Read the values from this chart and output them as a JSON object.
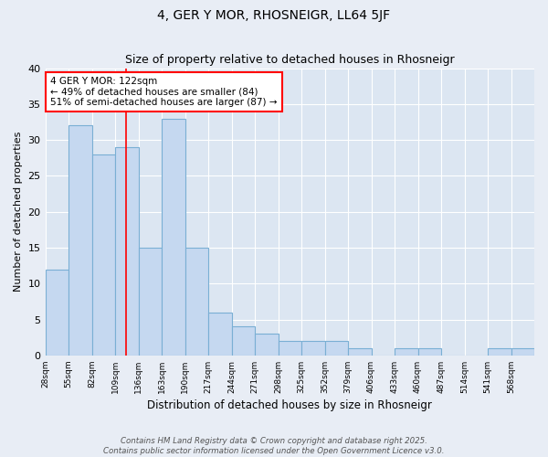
{
  "title": "4, GER Y MOR, RHOSNEIGR, LL64 5JF",
  "subtitle": "Size of property relative to detached houses in Rhosneigr",
  "xlabel": "Distribution of detached houses by size in Rhosneigr",
  "ylabel": "Number of detached properties",
  "bin_edges": [
    28,
    55,
    82,
    109,
    136,
    163,
    190,
    217,
    244,
    271,
    298,
    325,
    352,
    379,
    406,
    433,
    460,
    487,
    514,
    541,
    568,
    595
  ],
  "counts": [
    12,
    32,
    28,
    29,
    15,
    33,
    15,
    6,
    4,
    3,
    2,
    2,
    2,
    1,
    0,
    1,
    1,
    0,
    0,
    1,
    1
  ],
  "tick_labels": [
    "28sqm",
    "55sqm",
    "82sqm",
    "109sqm",
    "136sqm",
    "163sqm",
    "190sqm",
    "217sqm",
    "244sqm",
    "271sqm",
    "298sqm",
    "325sqm",
    "352sqm",
    "379sqm",
    "406sqm",
    "433sqm",
    "460sqm",
    "487sqm",
    "514sqm",
    "541sqm",
    "568sqm"
  ],
  "bar_color": "#c5d8f0",
  "bar_edge_color": "#7aafd4",
  "red_line_x": 122,
  "annotation_text": "4 GER Y MOR: 122sqm\n← 49% of detached houses are smaller (84)\n51% of semi-detached houses are larger (87) →",
  "annotation_box_color": "white",
  "annotation_box_edge": "red",
  "ylim": [
    0,
    40
  ],
  "yticks": [
    0,
    5,
    10,
    15,
    20,
    25,
    30,
    35,
    40
  ],
  "footer": "Contains HM Land Registry data © Crown copyright and database right 2025.\nContains public sector information licensed under the Open Government Licence v3.0.",
  "bg_color": "#e8edf5",
  "plot_bg_color": "#dce6f2",
  "grid_color": "white"
}
